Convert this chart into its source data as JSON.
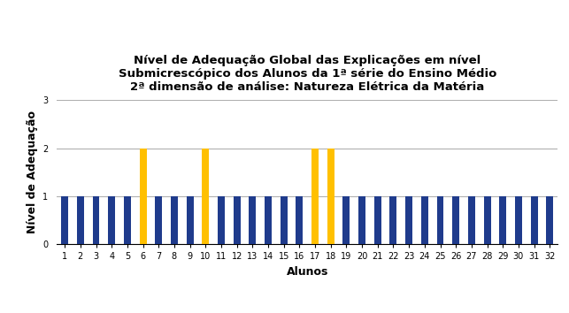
{
  "title_line1": "Nível de Adequação Global das Explicações em nível",
  "title_line2": "Submicrescópico dos Alunos da 1ª série do Ensino Médio",
  "title_line3": "2ª dimensão de análise: Natureza Elétrica da Matéria",
  "xlabel": "Alunos",
  "ylabel": "Nível de Adequação",
  "categories": [
    1,
    2,
    3,
    4,
    5,
    6,
    7,
    8,
    9,
    10,
    11,
    12,
    13,
    14,
    15,
    16,
    17,
    18,
    19,
    20,
    21,
    22,
    23,
    24,
    25,
    26,
    27,
    28,
    29,
    30,
    31,
    32
  ],
  "values": [
    1,
    1,
    1,
    1,
    1,
    2,
    1,
    1,
    1,
    2,
    1,
    1,
    1,
    1,
    1,
    1,
    2,
    2,
    1,
    1,
    1,
    1,
    1,
    1,
    1,
    1,
    1,
    1,
    1,
    1,
    1,
    1
  ],
  "color_adequadas": "#ff0000",
  "color_parcialmente": "#ffc000",
  "color_inadequadas": "#1f3b8c",
  "ylim": [
    0,
    3
  ],
  "yticks": [
    0,
    1,
    2,
    3
  ],
  "background_color": "#ffffff",
  "grid_color": "#b0b0b0",
  "title_fontsize": 9.5,
  "axis_label_fontsize": 9,
  "tick_fontsize": 7,
  "legend_fontsize": 8,
  "bar_width": 0.45
}
